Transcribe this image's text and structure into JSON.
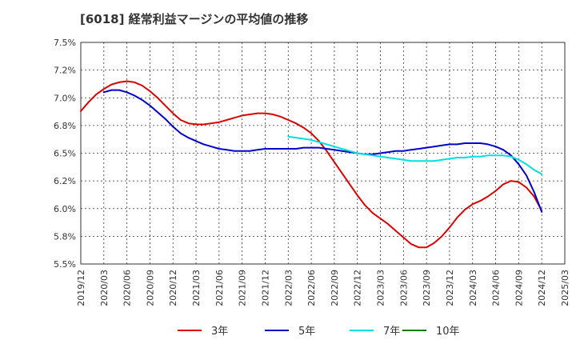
{
  "chart_data": {
    "type": "line",
    "title": "[6018]  経常利益マージンの平均値の推移",
    "ylim": [
      5.5,
      7.5
    ],
    "yticks": [
      5.5,
      5.75,
      6.0,
      6.25,
      6.5,
      6.75,
      7.0,
      7.25,
      7.5
    ],
    "ytick_labels": [
      "5.5%",
      "5.8%",
      "6.0%",
      "6.2%",
      "6.5%",
      "6.8%",
      "7.0%",
      "7.2%",
      "7.5%"
    ],
    "xlim": [
      "2019-12",
      "2025-03"
    ],
    "xtick_labels": [
      "2019/12",
      "2020/03",
      "2020/06",
      "2020/09",
      "2020/12",
      "2021/03",
      "2021/06",
      "2021/09",
      "2021/12",
      "2022/03",
      "2022/06",
      "2022/09",
      "2022/12",
      "2023/03",
      "2023/06",
      "2023/09",
      "2023/12",
      "2024/03",
      "2024/06",
      "2024/09",
      "2024/12",
      "2025/03"
    ],
    "grid": true,
    "legend_position": "bottom",
    "series": [
      {
        "name": "3年",
        "color": "#dd0000",
        "points": [
          [
            "2019-12",
            6.88
          ],
          [
            "2020-01",
            6.96
          ],
          [
            "2020-02",
            7.03
          ],
          [
            "2020-03",
            7.08
          ],
          [
            "2020-04",
            7.12
          ],
          [
            "2020-05",
            7.14
          ],
          [
            "2020-06",
            7.15
          ],
          [
            "2020-07",
            7.14
          ],
          [
            "2020-08",
            7.11
          ],
          [
            "2020-09",
            7.06
          ],
          [
            "2020-10",
            7.0
          ],
          [
            "2020-11",
            6.93
          ],
          [
            "2020-12",
            6.86
          ],
          [
            "2021-01",
            6.8
          ],
          [
            "2021-02",
            6.77
          ],
          [
            "2021-03",
            6.76
          ],
          [
            "2021-04",
            6.76
          ],
          [
            "2021-05",
            6.77
          ],
          [
            "2021-06",
            6.78
          ],
          [
            "2021-07",
            6.8
          ],
          [
            "2021-08",
            6.82
          ],
          [
            "2021-09",
            6.84
          ],
          [
            "2021-10",
            6.85
          ],
          [
            "2021-11",
            6.86
          ],
          [
            "2021-12",
            6.86
          ],
          [
            "2022-01",
            6.85
          ],
          [
            "2022-02",
            6.83
          ],
          [
            "2022-03",
            6.8
          ],
          [
            "2022-04",
            6.77
          ],
          [
            "2022-05",
            6.73
          ],
          [
            "2022-06",
            6.68
          ],
          [
            "2022-07",
            6.61
          ],
          [
            "2022-08",
            6.52
          ],
          [
            "2022-09",
            6.42
          ],
          [
            "2022-10",
            6.32
          ],
          [
            "2022-11",
            6.22
          ],
          [
            "2022-12",
            6.12
          ],
          [
            "2023-01",
            6.03
          ],
          [
            "2023-02",
            5.96
          ],
          [
            "2023-03",
            5.91
          ],
          [
            "2023-04",
            5.86
          ],
          [
            "2023-05",
            5.8
          ],
          [
            "2023-06",
            5.74
          ],
          [
            "2023-07",
            5.68
          ],
          [
            "2023-08",
            5.65
          ],
          [
            "2023-09",
            5.65
          ],
          [
            "2023-10",
            5.69
          ],
          [
            "2023-11",
            5.75
          ],
          [
            "2023-12",
            5.83
          ],
          [
            "2024-01",
            5.92
          ],
          [
            "2024-02",
            5.99
          ],
          [
            "2024-03",
            6.04
          ],
          [
            "2024-04",
            6.07
          ],
          [
            "2024-05",
            6.11
          ],
          [
            "2024-06",
            6.16
          ],
          [
            "2024-07",
            6.22
          ],
          [
            "2024-08",
            6.25
          ],
          [
            "2024-09",
            6.24
          ],
          [
            "2024-10",
            6.19
          ],
          [
            "2024-11",
            6.11
          ],
          [
            "2024-12",
            5.98
          ]
        ]
      },
      {
        "name": "5年",
        "color": "#0000cc",
        "points": [
          [
            "2020-03",
            7.05
          ],
          [
            "2020-04",
            7.07
          ],
          [
            "2020-05",
            7.07
          ],
          [
            "2020-06",
            7.05
          ],
          [
            "2020-07",
            7.02
          ],
          [
            "2020-08",
            6.98
          ],
          [
            "2020-09",
            6.93
          ],
          [
            "2020-10",
            6.87
          ],
          [
            "2020-11",
            6.81
          ],
          [
            "2020-12",
            6.74
          ],
          [
            "2021-01",
            6.68
          ],
          [
            "2021-02",
            6.64
          ],
          [
            "2021-03",
            6.61
          ],
          [
            "2021-04",
            6.58
          ],
          [
            "2021-05",
            6.56
          ],
          [
            "2021-06",
            6.54
          ],
          [
            "2021-07",
            6.53
          ],
          [
            "2021-08",
            6.52
          ],
          [
            "2021-09",
            6.52
          ],
          [
            "2021-10",
            6.52
          ],
          [
            "2021-11",
            6.53
          ],
          [
            "2021-12",
            6.54
          ],
          [
            "2022-01",
            6.54
          ],
          [
            "2022-02",
            6.54
          ],
          [
            "2022-03",
            6.54
          ],
          [
            "2022-04",
            6.54
          ],
          [
            "2022-05",
            6.55
          ],
          [
            "2022-06",
            6.55
          ],
          [
            "2022-07",
            6.55
          ],
          [
            "2022-08",
            6.54
          ],
          [
            "2022-09",
            6.53
          ],
          [
            "2022-10",
            6.52
          ],
          [
            "2022-11",
            6.51
          ],
          [
            "2022-12",
            6.5
          ],
          [
            "2023-01",
            6.49
          ],
          [
            "2023-02",
            6.49
          ],
          [
            "2023-03",
            6.5
          ],
          [
            "2023-04",
            6.51
          ],
          [
            "2023-05",
            6.52
          ],
          [
            "2023-06",
            6.52
          ],
          [
            "2023-07",
            6.53
          ],
          [
            "2023-08",
            6.54
          ],
          [
            "2023-09",
            6.55
          ],
          [
            "2023-10",
            6.56
          ],
          [
            "2023-11",
            6.57
          ],
          [
            "2023-12",
            6.58
          ],
          [
            "2024-01",
            6.58
          ],
          [
            "2024-02",
            6.59
          ],
          [
            "2024-03",
            6.59
          ],
          [
            "2024-04",
            6.59
          ],
          [
            "2024-05",
            6.58
          ],
          [
            "2024-06",
            6.56
          ],
          [
            "2024-07",
            6.53
          ],
          [
            "2024-08",
            6.48
          ],
          [
            "2024-09",
            6.4
          ],
          [
            "2024-10",
            6.3
          ],
          [
            "2024-11",
            6.15
          ],
          [
            "2024-12",
            5.97
          ]
        ]
      },
      {
        "name": "7年",
        "color": "#00e0e0",
        "points": [
          [
            "2022-03",
            6.65
          ],
          [
            "2022-04",
            6.64
          ],
          [
            "2022-05",
            6.63
          ],
          [
            "2022-06",
            6.62
          ],
          [
            "2022-07",
            6.6
          ],
          [
            "2022-08",
            6.58
          ],
          [
            "2022-09",
            6.56
          ],
          [
            "2022-10",
            6.54
          ],
          [
            "2022-11",
            6.52
          ],
          [
            "2022-12",
            6.5
          ],
          [
            "2023-01",
            6.49
          ],
          [
            "2023-02",
            6.48
          ],
          [
            "2023-03",
            6.47
          ],
          [
            "2023-04",
            6.46
          ],
          [
            "2023-05",
            6.45
          ],
          [
            "2023-06",
            6.44
          ],
          [
            "2023-07",
            6.43
          ],
          [
            "2023-08",
            6.43
          ],
          [
            "2023-09",
            6.43
          ],
          [
            "2023-10",
            6.43
          ],
          [
            "2023-11",
            6.44
          ],
          [
            "2023-12",
            6.45
          ],
          [
            "2024-01",
            6.46
          ],
          [
            "2024-02",
            6.46
          ],
          [
            "2024-03",
            6.47
          ],
          [
            "2024-04",
            6.47
          ],
          [
            "2024-05",
            6.48
          ],
          [
            "2024-06",
            6.48
          ],
          [
            "2024-07",
            6.48
          ],
          [
            "2024-08",
            6.47
          ],
          [
            "2024-09",
            6.44
          ],
          [
            "2024-10",
            6.4
          ],
          [
            "2024-11",
            6.35
          ],
          [
            "2024-12",
            6.31
          ]
        ]
      },
      {
        "name": "10年",
        "color": "#008000",
        "points": []
      }
    ]
  }
}
